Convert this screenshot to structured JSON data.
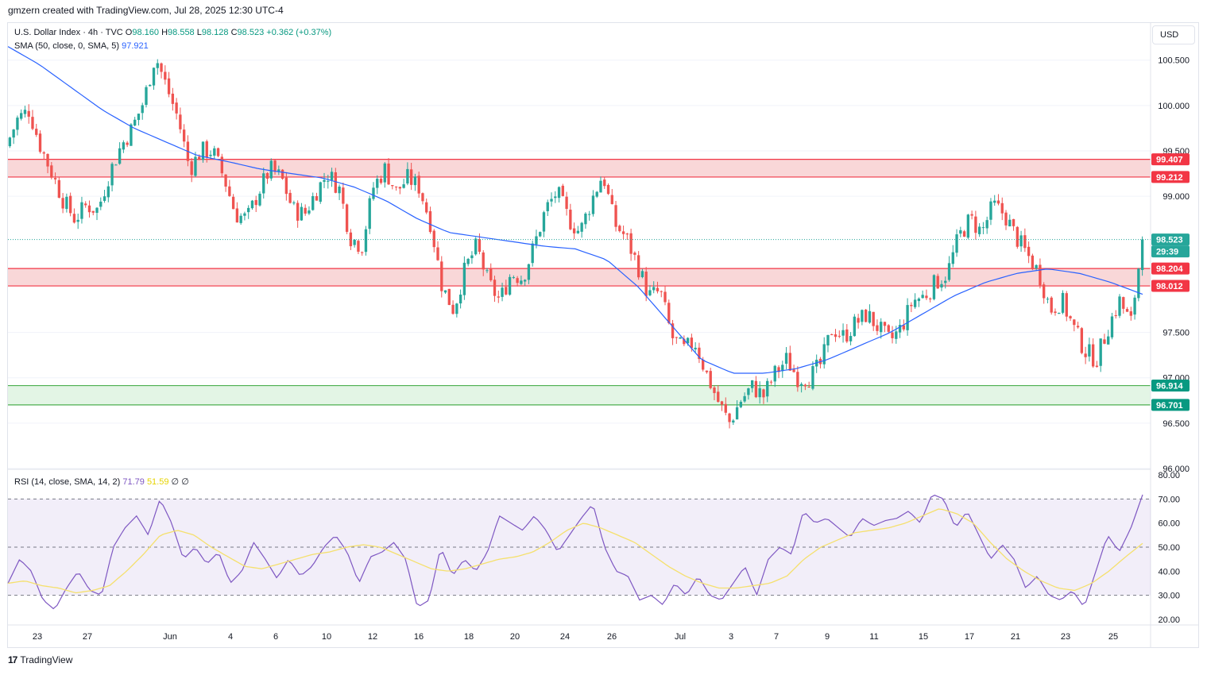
{
  "header": {
    "created_by": "gmzern created with TradingView.com, Jul 28, 2025 12:30 UTC-4"
  },
  "legend": {
    "symbol": "U.S. Dollar Index · 4h · TVC",
    "open_label": "O",
    "open": "98.160",
    "high_label": "H",
    "high": "98.558",
    "low_label": "L",
    "low": "98.128",
    "close_label": "C",
    "close": "98.523",
    "change": "+0.362 (+0.37%)",
    "sma_label": "SMA (50, close, 0, SMA, 5)",
    "sma_value": "97.921",
    "rsi_label": "RSI (14, close, SMA, 14, 2)",
    "rsi_value": "71.79",
    "rsi_ma_value": "51.59",
    "rsi_div1": "∅",
    "rsi_div2": "∅"
  },
  "currency_button": "USD",
  "footer": {
    "logo": "17",
    "brand": "TradingView"
  },
  "colors": {
    "up": "#26a69a",
    "down": "#ef5350",
    "sma": "#2962ff",
    "rsi": "#7e57c2",
    "rsi_ma": "#f5e06d",
    "resistance_zone": "#f7c9cb",
    "support_zone": "#d9f2dc"
  },
  "chart_data": [
    {
      "type": "candlestick",
      "title": "U.S. Dollar Index · 4h · TVC",
      "y_axis_ticks": [
        "100.500",
        "100.000",
        "99.500",
        "99.000",
        "97.500",
        "97.000",
        "96.500",
        "96.000"
      ],
      "ylim": [
        96.0,
        100.9
      ],
      "x_axis_ticks": [
        "23",
        "27",
        "Jun",
        "4",
        "6",
        "10",
        "12",
        "16",
        "18",
        "20",
        "24",
        "26",
        "Jul",
        "3",
        "7",
        "9",
        "11",
        "15",
        "17",
        "21",
        "23",
        "25"
      ],
      "zones": [
        {
          "name": "resistance-upper",
          "high": 99.407,
          "low": 99.212,
          "color": "#f7c9cb"
        },
        {
          "name": "resistance-lower",
          "high": 98.204,
          "low": 98.012,
          "color": "#f7c9cb"
        },
        {
          "name": "support",
          "high": 96.914,
          "low": 96.701,
          "color": "#d9f2dc"
        }
      ],
      "price_labels": [
        {
          "value": "99.407",
          "color": "#f23645"
        },
        {
          "value": "99.212",
          "color": "#f23645"
        },
        {
          "value": "98.523",
          "color": "#26a69a"
        },
        {
          "value": "29:39",
          "color": "#26a69a"
        },
        {
          "value": "98.204",
          "color": "#f23645"
        },
        {
          "value": "98.012",
          "color": "#f23645"
        },
        {
          "value": "96.914",
          "color": "#089981"
        },
        {
          "value": "96.701",
          "color": "#089981"
        }
      ],
      "current_price": 98.523,
      "price_path": [
        99.55,
        99.85,
        99.95,
        99.55,
        99.25,
        98.95,
        98.75,
        98.9,
        98.85,
        99.25,
        99.55,
        99.75,
        100.05,
        100.55,
        100.2,
        99.85,
        99.3,
        99.5,
        99.5,
        99.2,
        98.8,
        98.75,
        99.05,
        99.3,
        99.2,
        98.85,
        98.8,
        99.05,
        99.25,
        99.1,
        98.55,
        98.45,
        99.1,
        99.3,
        99.05,
        99.2,
        99.1,
        98.7,
        98.0,
        97.75,
        98.2,
        98.45,
        98.05,
        97.85,
        98.15,
        98.1,
        98.45,
        98.85,
        99.05,
        98.75,
        98.6,
        98.95,
        99.25,
        98.7,
        98.55,
        98.25,
        97.9,
        97.95,
        97.45,
        97.3,
        97.4,
        97.05,
        96.75,
        96.5,
        96.75,
        96.9,
        96.8,
        97.05,
        97.2,
        97.0,
        97.0,
        97.15,
        97.55,
        97.45,
        97.6,
        97.7,
        97.55,
        97.4,
        97.55,
        97.85,
        97.9,
        98.05,
        98.15,
        98.55,
        98.75,
        98.6,
        98.9,
        98.8,
        98.55,
        98.35,
        98.15,
        97.75,
        97.85,
        97.55,
        97.3,
        97.2,
        97.55,
        97.85,
        97.6,
        98.523
      ],
      "sma_path": [
        100.65,
        100.45,
        100.2,
        99.95,
        99.75,
        99.6,
        99.45,
        99.38,
        99.3,
        99.25,
        99.2,
        99.1,
        98.95,
        98.75,
        98.6,
        98.55,
        98.5,
        98.45,
        98.42,
        98.3,
        98.0,
        97.6,
        97.2,
        97.05,
        97.05,
        97.1,
        97.2,
        97.35,
        97.5,
        97.7,
        97.9,
        98.05,
        98.15,
        98.2,
        98.15,
        98.05,
        97.92
      ],
      "rsi": {
        "ylim": [
          18,
          82
        ],
        "ticks": [
          "80.00",
          "70.00",
          "60.00",
          "50.00",
          "40.00",
          "30.00",
          "20.00"
        ],
        "overbought": 70,
        "middle": 50,
        "oversold": 30,
        "rsi_path": [
          35,
          45,
          40,
          28,
          24,
          33,
          40,
          32,
          30,
          50,
          58,
          63,
          55,
          70,
          60,
          45,
          50,
          43,
          48,
          35,
          40,
          52,
          45,
          37,
          45,
          38,
          42,
          50,
          55,
          48,
          35,
          46,
          48,
          52,
          45,
          25,
          28,
          50,
          38,
          45,
          40,
          48,
          63,
          60,
          57,
          63,
          57,
          48,
          55,
          62,
          68,
          50,
          40,
          38,
          28,
          30,
          26,
          35,
          30,
          38,
          30,
          28,
          35,
          42,
          30,
          45,
          50,
          47,
          65,
          60,
          62,
          58,
          54,
          62,
          59,
          61,
          62,
          65,
          60,
          72,
          70,
          58,
          65,
          55,
          45,
          51,
          45,
          33,
          38,
          30,
          28,
          32,
          25,
          40,
          55,
          48,
          58,
          71.79
        ],
        "rsi_ma_path": [
          35,
          36,
          34,
          33,
          31,
          32,
          34,
          40,
          47,
          55,
          57,
          55,
          50,
          46,
          42,
          41,
          43,
          45,
          47,
          48,
          50,
          51,
          50,
          47,
          44,
          41,
          40,
          41,
          43,
          45,
          46,
          48,
          52,
          57,
          60,
          58,
          55,
          52,
          47,
          42,
          38,
          35,
          33,
          33,
          34,
          35,
          38,
          45,
          50,
          53,
          56,
          57,
          58,
          60,
          63,
          66,
          64,
          60,
          52,
          45,
          40,
          36,
          33,
          32,
          35,
          40,
          46,
          51.59
        ]
      }
    }
  ]
}
